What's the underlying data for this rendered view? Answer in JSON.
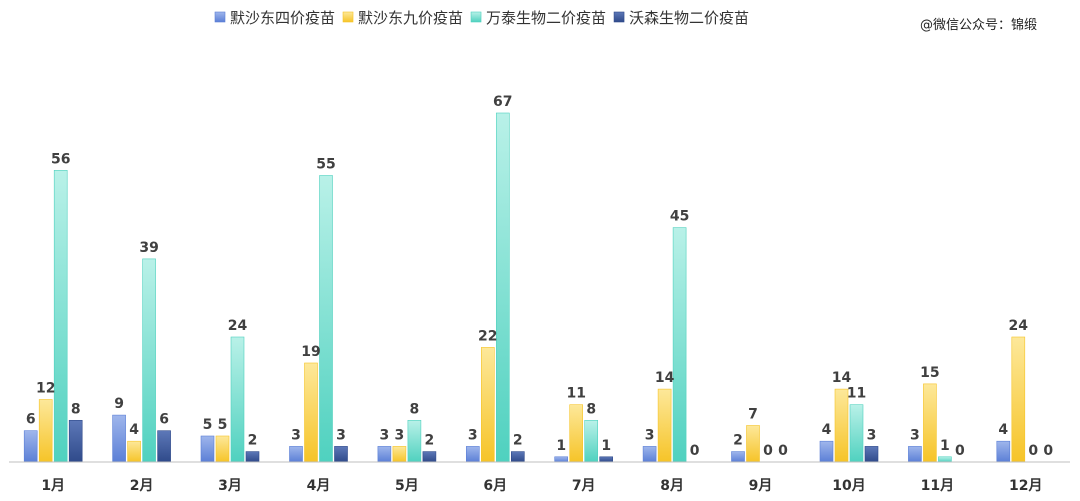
{
  "watermark": "@微信公众号：锦缎",
  "colors": {
    "series": [
      "#5b7fd6",
      "#f6c428",
      "#4fd1bf",
      "#2f4a8a"
    ],
    "series_light": [
      "#9fb6ec",
      "#fde89a",
      "#b9f1e8",
      "#5d78b8"
    ],
    "axis": "#bfbfbf"
  },
  "chart_data": {
    "type": "bar",
    "title": "",
    "xlabel": "",
    "ylabel": "",
    "ylim": [
      0,
      70
    ],
    "legend_position": "top",
    "grid": false,
    "categories": [
      "1月",
      "2月",
      "3月",
      "4月",
      "5月",
      "6月",
      "7月",
      "8月",
      "9月",
      "10月",
      "11月",
      "12月"
    ],
    "series": [
      {
        "name": "默沙东四价疫苗",
        "values": [
          6,
          9,
          5,
          3,
          3,
          3,
          1,
          3,
          2,
          4,
          3,
          4
        ]
      },
      {
        "name": "默沙东九价疫苗",
        "values": [
          12,
          4,
          5,
          19,
          3,
          22,
          11,
          14,
          7,
          14,
          15,
          24
        ]
      },
      {
        "name": "万泰生物二价疫苗",
        "values": [
          56,
          39,
          24,
          55,
          8,
          67,
          8,
          45,
          0,
          11,
          1,
          0
        ]
      },
      {
        "name": "沃森生物二价疫苗",
        "values": [
          8,
          6,
          2,
          3,
          2,
          2,
          1,
          0,
          0,
          3,
          0,
          0
        ]
      }
    ]
  }
}
